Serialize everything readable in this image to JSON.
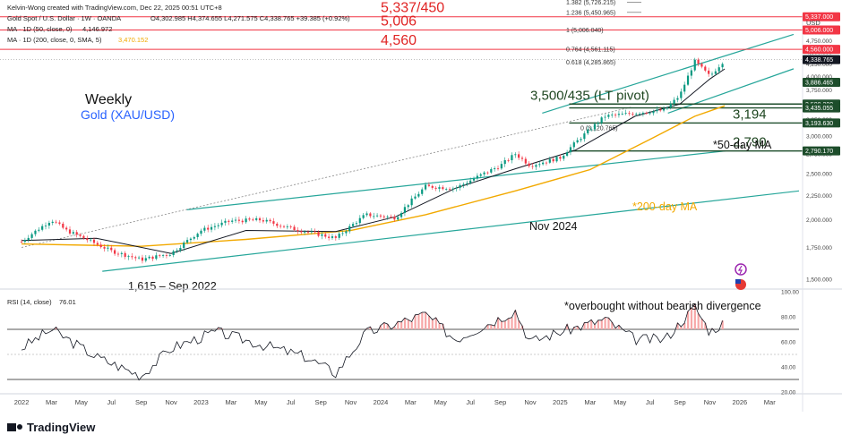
{
  "header": {
    "credit": "Kelvin-Wong created with TradingView.com, Dec 22, 2025 00:51 UTC+8",
    "symbol": "Gold Spot / U.S. Dollar · 1W · OANDA",
    "ohlc": "O4,302.985  H4,374.655  L4,271.575  C4,338.765  +39.385 (+0.92%)",
    "ma50_label": "MA · 1D (50, close, 0)",
    "ma50_value": "4,146.972",
    "ma200_label": "MA · 1D (200, close, 0, SMA, 5)",
    "ma200_value": "3,470.152"
  },
  "currency": "USD",
  "logo": "TradingView",
  "colors": {
    "price": "#131722",
    "resistance": "#f23645",
    "support": "#1d4d2b",
    "channel": "#26a69a",
    "ma50": "#131722",
    "ma200": "#f2a900",
    "up_candle": "#089981",
    "down_candle": "#f23645",
    "rsi": "#131722",
    "rsi_overbought": "#f7a8a8"
  },
  "chart_data": [
    {
      "type": "candlestick",
      "title": "Weekly",
      "subtitle": "Gold (XAU/USD)",
      "x_ticks": [
        "2022",
        "Mar",
        "May",
        "Jul",
        "Sep",
        "Nov",
        "2023",
        "Mar",
        "May",
        "Jul",
        "Sep",
        "Nov",
        "2024",
        "Mar",
        "May",
        "Jul",
        "Sep",
        "Nov",
        "2025",
        "Mar",
        "May",
        "Jul",
        "Sep",
        "Nov",
        "2026",
        "Mar"
      ],
      "y_ticks": [
        1500,
        1750,
        2000,
        2250,
        2500,
        2750,
        3000,
        3250,
        3500,
        3750,
        4000,
        4250,
        4500,
        4750
      ],
      "y_tick_labels": [
        "1,500.000",
        "1,750.000",
        "2,000.000",
        "2,250.000",
        "2,500.000",
        "2,750.000",
        "3,000.000",
        "3,250.000",
        "3,500.000",
        "3,750.000",
        "4,000.000",
        "4,250.000",
        "4,500.000",
        "4,750.000"
      ],
      "ylim": [
        1450,
        5400
      ],
      "price_path": {
        "x": [
          "2022-01",
          "2022-03",
          "2022-04",
          "2022-07",
          "2022-09",
          "2022-11",
          "2023-01",
          "2023-03",
          "2023-05",
          "2023-07",
          "2023-10",
          "2023-12",
          "2024-02",
          "2024-04",
          "2024-06",
          "2024-09",
          "2024-10",
          "2024-11",
          "2025-01",
          "2025-04",
          "2025-06",
          "2025-08",
          "2025-09",
          "2025-10",
          "2025-11",
          "2025-12"
        ],
        "close": [
          1800,
          2000,
          1900,
          1720,
          1650,
          1700,
          1900,
          1990,
          2000,
          1920,
          1830,
          2050,
          2020,
          2350,
          2330,
          2600,
          2750,
          2600,
          2700,
          3300,
          3350,
          3400,
          3650,
          4300,
          4000,
          4338.765
        ]
      },
      "ma50": {
        "x": [
          "2022-01",
          "2022-06",
          "2022-11",
          "2023-04",
          "2023-10",
          "2024-02",
          "2024-06",
          "2024-10",
          "2025-02",
          "2025-06",
          "2025-09",
          "2025-11",
          "2025-12"
        ],
        "values": [
          1810,
          1830,
          1700,
          1900,
          1890,
          2030,
          2330,
          2560,
          2800,
          3300,
          3500,
          3950,
          4146.972
        ]
      },
      "ma200": {
        "x": [
          "2022-01",
          "2022-09",
          "2023-04",
          "2023-11",
          "2024-04",
          "2024-10",
          "2025-03",
          "2025-07",
          "2025-10",
          "2025-12"
        ],
        "values": [
          1780,
          1760,
          1820,
          1900,
          2050,
          2300,
          2550,
          2950,
          3300,
          3470.152
        ]
      },
      "horizontal_levels": [
        {
          "label": "5,337/450",
          "value": 5337,
          "tag": "5,337.000",
          "style": "resistance"
        },
        {
          "label": "5,006",
          "value": 5006,
          "tag": "5,006.000",
          "style": "resistance"
        },
        {
          "label": "4,560",
          "value": 4560,
          "tag": "4,560.000",
          "style": "resistance"
        },
        {
          "label": "3,500/435 (LT pivot)",
          "value": 3500,
          "tag": "3,500.200",
          "style": "support"
        },
        {
          "label": "",
          "value": 3435,
          "tag": "3,435.055",
          "style": "support"
        },
        {
          "label": "3,194",
          "value": 3194,
          "tag": "3,193.630",
          "style": "support"
        },
        {
          "label": "2,790",
          "value": 2790,
          "tag": "2,790.170",
          "style": "support"
        }
      ],
      "price_tags": [
        {
          "value": 4338.765,
          "text": "4,338.765"
        },
        {
          "value": 3886.465,
          "text": "3,886.465"
        }
      ],
      "fib_levels": [
        {
          "label": "1.382 (5,726.215)",
          "value": 5726.215
        },
        {
          "label": "1.236 (5,450.965)",
          "value": 5450.965
        },
        {
          "label": "1 (5,006.040)",
          "value": 5006.04
        },
        {
          "label": "0.764 (4,561.115)",
          "value": 4561.115
        },
        {
          "label": "0.618 (4,285.865)",
          "value": 4285.865
        },
        {
          "label": "0 (3,120.765)",
          "value": 3120.765
        }
      ],
      "annotations": [
        {
          "text": "*50-day MA"
        },
        {
          "text": "*200-day MA"
        },
        {
          "text": "Nov 2024"
        },
        {
          "text": "1,615 – Sep 2022"
        }
      ]
    },
    {
      "type": "line",
      "title": "RSI (14, close)",
      "current_value": "76.01",
      "ylim": [
        20,
        100
      ],
      "y_ticks": [
        20,
        40,
        60,
        80,
        100
      ],
      "y_tick_labels": [
        "20.00",
        "40.00",
        "60.00",
        "80.00",
        "100.00"
      ],
      "reference_lines": [
        70,
        50,
        30
      ],
      "x": [
        "2022-01",
        "2022-03",
        "2022-06",
        "2022-09",
        "2022-11",
        "2023-02",
        "2023-05",
        "2023-08",
        "2023-10",
        "2023-12",
        "2024-04",
        "2024-06",
        "2024-10",
        "2024-11",
        "2025-01",
        "2025-04",
        "2025-06",
        "2025-08",
        "2025-10",
        "2025-11",
        "2025-12"
      ],
      "values": [
        55,
        70,
        48,
        33,
        55,
        68,
        58,
        48,
        35,
        67,
        82,
        62,
        85,
        60,
        68,
        78,
        62,
        62,
        88,
        68,
        76.01
      ],
      "annotation": "*overbought without bearish divergence"
    }
  ]
}
